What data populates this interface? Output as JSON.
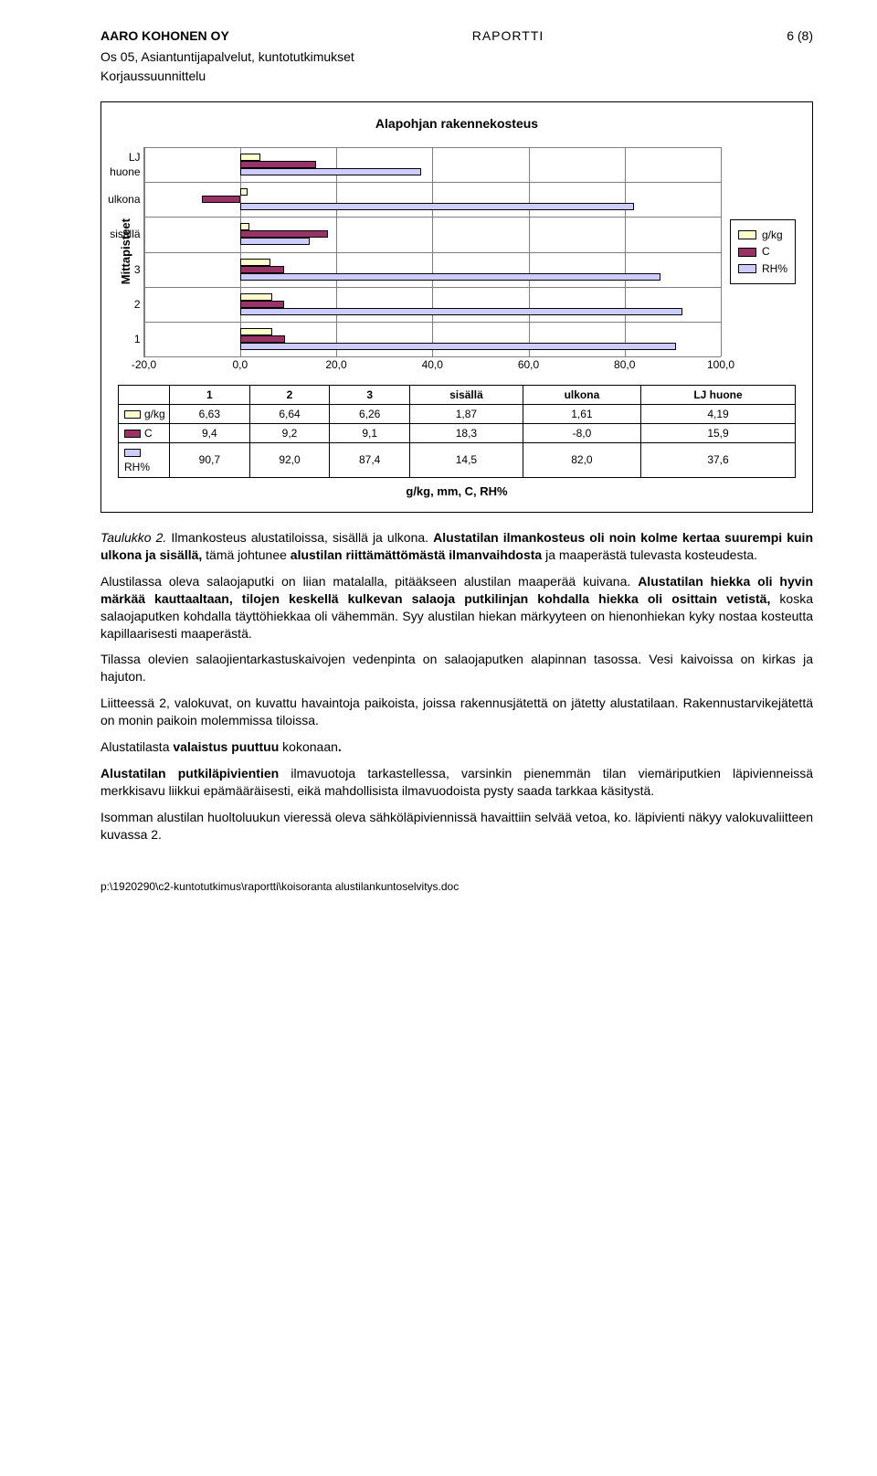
{
  "header": {
    "company": "AARO KOHONEN OY",
    "doctype": "RAPORTTI",
    "pagenum": "6 (8)",
    "sub1": "Os 05, Asiantuntijapalvelut, kuntotutkimukset",
    "sub2": "Korjaussuunnittelu"
  },
  "chart": {
    "title": "Alapohjan rakennekosteus",
    "ylabel": "Mittapisteet",
    "xlabel": "g/kg, mm, C, RH%",
    "type": "bar",
    "xmin": -20.0,
    "xmax": 100.0,
    "xtick_step": 20.0,
    "xticks": [
      "-20,0",
      "0,0",
      "20,0",
      "40,0",
      "60,0",
      "80,0",
      "100,0"
    ],
    "categories": [
      "LJ huone",
      "ulkona",
      "sisällä",
      "3",
      "2",
      "1"
    ],
    "series": [
      {
        "key": "gk",
        "label": "g/kg",
        "color": "#ffffcc"
      },
      {
        "key": "cc",
        "label": "C",
        "color": "#993366"
      },
      {
        "key": "rh",
        "label": "RH%",
        "color": "#ccccff"
      }
    ],
    "rows": {
      "1": {
        "gk": 6.63,
        "cc": 9.4,
        "rh": 90.7
      },
      "2": {
        "gk": 6.64,
        "cc": 9.2,
        "rh": 92.0
      },
      "3": {
        "gk": 6.26,
        "cc": 9.1,
        "rh": 87.4
      },
      "sisällä": {
        "gk": 1.87,
        "cc": 18.3,
        "rh": 14.5
      },
      "ulkona": {
        "gk": 1.61,
        "cc": -8.0,
        "rh": 82.0
      },
      "LJ huone": {
        "gk": 4.19,
        "cc": 15.9,
        "rh": 37.6
      }
    },
    "table": {
      "cols": [
        "1",
        "2",
        "3",
        "sisällä",
        "ulkona",
        "LJ huone"
      ],
      "rows": [
        {
          "key": "gk",
          "label": "g/kg",
          "cells": [
            "6,63",
            "6,64",
            "6,26",
            "1,87",
            "1,61",
            "4,19"
          ]
        },
        {
          "key": "cc",
          "label": "C",
          "cells": [
            "9,4",
            "9,2",
            "9,1",
            "18,3",
            "-8,0",
            "15,9"
          ]
        },
        {
          "key": "rh",
          "label": "RH%",
          "cells": [
            "90,7",
            "92,0",
            "87,4",
            "14,5",
            "82,0",
            "37,6"
          ]
        }
      ]
    },
    "grid_color": "#7f7f7f",
    "background_color": "#ffffff"
  },
  "body": {
    "caption_lead": "Taulukko 2.",
    "caption_plain": " Ilmankosteus alustatiloissa, sisällä ja ulkona. ",
    "caption_bold1": "Alustatilan  ilmankosteus oli  noin kolme kertaa suurempi kuin ulkona ja sisällä,",
    "caption_mid": " tämä johtunee ",
    "caption_bold2": "alustilan riittämättömästä ilmanvaihdosta",
    "caption_tail": " ja maaperästä tulevasta kosteudesta.",
    "p2_a": "Alustilassa oleva salaojaputki on liian matalalla, pitääkseen alustilan maaperää kuivana. ",
    "p2_b": "Alustatilan hiekka oli hyvin märkää kauttaaltaan, tilojen keskellä kulkevan salaoja putkilinjan kohdalla hiekka oli osittain vetistä,",
    "p2_c": " koska salaojaputken kohdalla täyttöhiekkaa oli vähemmän. Syy alustilan hiekan märkyyteen on hienonhiekan kyky nostaa kosteutta kapillaarisesti maaperästä.",
    "p3": "Tilassa olevien salaojientarkastuskaivojen vedenpinta on salaojaputken alapinnan tasossa. Vesi kaivoissa on kirkas ja hajuton.",
    "p4": "Liitteessä 2, valokuvat, on kuvattu havaintoja paikoista, joissa rakennusjätettä on jätetty alustatilaan. Rakennustarvikejätettä on monin paikoin molemmissa tiloissa.",
    "p5_a": "Alustatilasta ",
    "p5_b": "valaistus puuttuu",
    "p5_c": " kokonaan",
    "p5_d": ".",
    "p6_a": "Alustatilan putkiläpivientien",
    "p6_b": " ilmavuotoja tarkastellessa, varsinkin pienemmän tilan viemäriputkien läpivienneissä merkkisavu liikkui epämääräisesti, eikä mahdollisista ilmavuodoista pysty saada tarkkaa käsitystä.",
    "p7": "Isomman alustilan huoltoluukun vieressä oleva sähköläpiviennissä havaittiin selvää vetoa, ko. läpivienti näkyy valokuvaliitteen kuvassa 2."
  },
  "footer": {
    "path": "p:\\1920290\\c2-kuntotutkimus\\raportti\\koisoranta alustilankuntoselvitys.doc"
  }
}
